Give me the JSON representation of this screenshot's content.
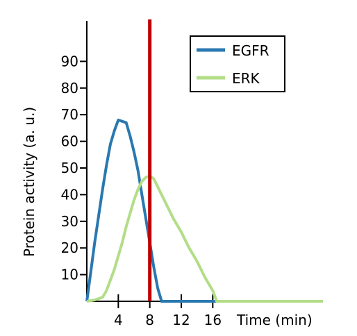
{
  "chart_data": {
    "type": "line",
    "title": "",
    "xlabel": "Time (min)",
    "ylabel": "Protein activity (a. u.)",
    "xlim": [
      0,
      30
    ],
    "ylim": [
      0,
      100
    ],
    "x_ticks": [
      4,
      8,
      12,
      16
    ],
    "x_tick_labels": [
      "4",
      "8",
      "12",
      "16"
    ],
    "y_ticks": [
      10,
      20,
      30,
      40,
      50,
      60,
      70,
      80,
      90
    ],
    "y_tick_labels": [
      "10",
      "20",
      "30",
      "40",
      "50",
      "60",
      "70",
      "80",
      "90"
    ],
    "grid": false,
    "legend_position": "top-right",
    "vertical_marker": {
      "x": 8,
      "color": "#c00000"
    },
    "series": [
      {
        "name": "EGFR",
        "color": "#2a78b0",
        "x": [
          0,
          0.5,
          1,
          1.5,
          2,
          2.5,
          3,
          3.5,
          4,
          5,
          5.5,
          6,
          6.5,
          7,
          7.5,
          8,
          8.5,
          9,
          9.5,
          30
        ],
        "y": [
          0,
          11,
          22,
          32,
          42,
          51,
          59,
          64,
          68,
          67,
          62,
          56,
          49,
          40,
          31,
          22,
          13,
          5,
          0,
          0
        ]
      },
      {
        "name": "ERK",
        "color": "#b3dd87",
        "x": [
          0,
          1,
          2,
          2.5,
          3,
          3.5,
          4,
          4.5,
          5,
          5.5,
          6,
          6.5,
          7,
          7.5,
          8,
          8.5,
          9,
          10,
          11,
          12,
          13,
          14,
          15,
          16,
          16.5,
          30
        ],
        "y": [
          0,
          0.5,
          1.5,
          4,
          8,
          12,
          17,
          22,
          28,
          33,
          38,
          42,
          45,
          46.5,
          47,
          46,
          43,
          37,
          31,
          26,
          20,
          15,
          9,
          4,
          0,
          0
        ]
      }
    ]
  }
}
